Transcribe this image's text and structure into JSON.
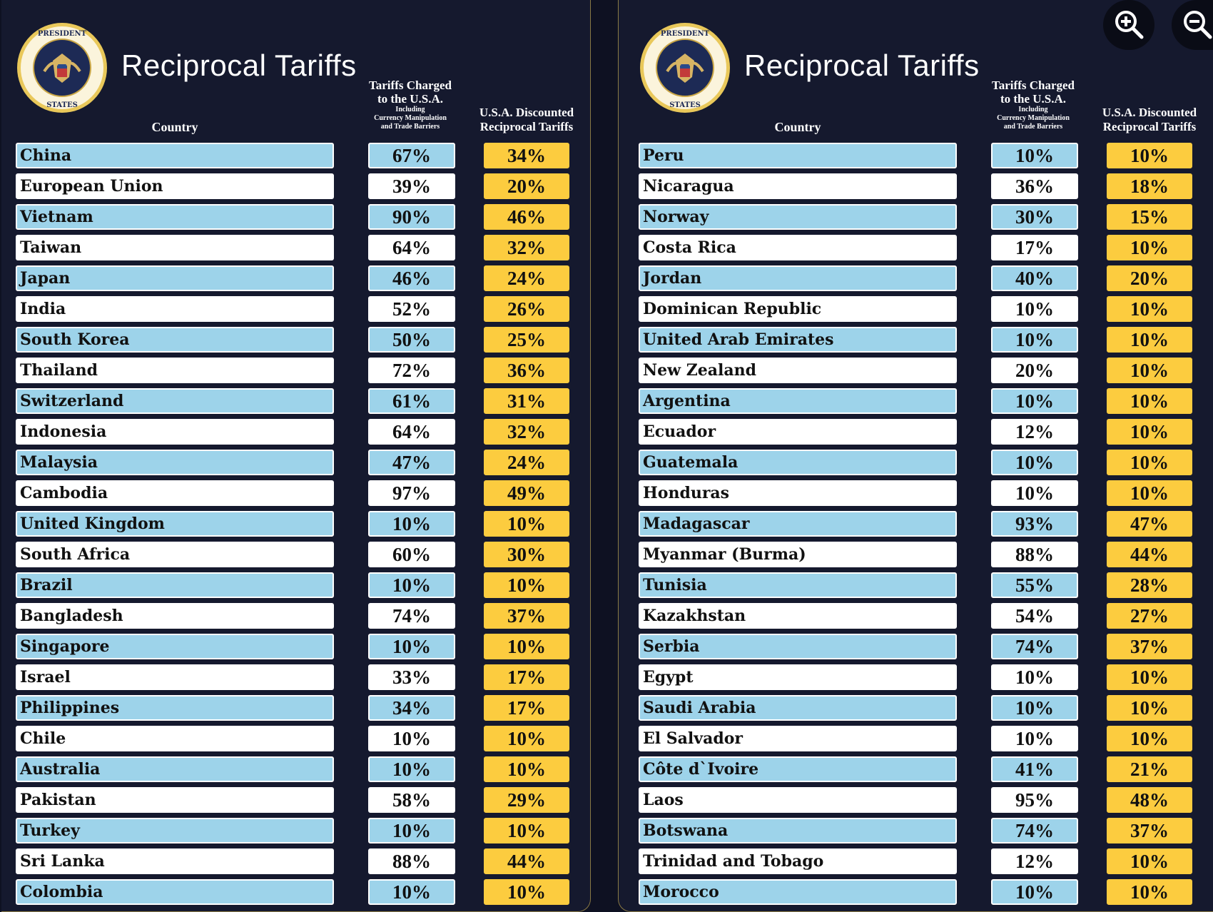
{
  "panels": [
    {
      "title": "Reciprocal Tariffs",
      "header_country": "Country",
      "header_charged_1": "Tariffs Charged",
      "header_charged_2": "to the U.S.A.",
      "header_charged_3": "Including",
      "header_charged_4": "Currency Manipulation",
      "header_charged_5": "and Trade Barriers",
      "header_disc_1": "U.S.A. Discounted",
      "header_disc_2": "Reciprocal Tariffs",
      "rows": [
        {
          "country": "China",
          "charged": "67%",
          "disc": "34%"
        },
        {
          "country": "European Union",
          "charged": "39%",
          "disc": "20%"
        },
        {
          "country": "Vietnam",
          "charged": "90%",
          "disc": "46%"
        },
        {
          "country": "Taiwan",
          "charged": "64%",
          "disc": "32%"
        },
        {
          "country": "Japan",
          "charged": "46%",
          "disc": "24%"
        },
        {
          "country": "India",
          "charged": "52%",
          "disc": "26%"
        },
        {
          "country": "South Korea",
          "charged": "50%",
          "disc": "25%"
        },
        {
          "country": "Thailand",
          "charged": "72%",
          "disc": "36%"
        },
        {
          "country": "Switzerland",
          "charged": "61%",
          "disc": "31%"
        },
        {
          "country": "Indonesia",
          "charged": "64%",
          "disc": "32%"
        },
        {
          "country": "Malaysia",
          "charged": "47%",
          "disc": "24%"
        },
        {
          "country": "Cambodia",
          "charged": "97%",
          "disc": "49%"
        },
        {
          "country": "United Kingdom",
          "charged": "10%",
          "disc": "10%"
        },
        {
          "country": "South Africa",
          "charged": "60%",
          "disc": "30%"
        },
        {
          "country": "Brazil",
          "charged": "10%",
          "disc": "10%"
        },
        {
          "country": "Bangladesh",
          "charged": "74%",
          "disc": "37%"
        },
        {
          "country": "Singapore",
          "charged": "10%",
          "disc": "10%"
        },
        {
          "country": "Israel",
          "charged": "33%",
          "disc": "17%"
        },
        {
          "country": "Philippines",
          "charged": "34%",
          "disc": "17%"
        },
        {
          "country": "Chile",
          "charged": "10%",
          "disc": "10%"
        },
        {
          "country": "Australia",
          "charged": "10%",
          "disc": "10%"
        },
        {
          "country": "Pakistan",
          "charged": "58%",
          "disc": "29%"
        },
        {
          "country": "Turkey",
          "charged": "10%",
          "disc": "10%"
        },
        {
          "country": "Sri Lanka",
          "charged": "88%",
          "disc": "44%"
        },
        {
          "country": "Colombia",
          "charged": "10%",
          "disc": "10%"
        }
      ]
    },
    {
      "title": "Reciprocal Tariffs",
      "header_country": "Country",
      "header_charged_1": "Tariffs Charged",
      "header_charged_2": "to the U.S.A.",
      "header_charged_3": "Including",
      "header_charged_4": "Currency Manipulation",
      "header_charged_5": "and Trade Barriers",
      "header_disc_1": "U.S.A. Discounted",
      "header_disc_2": "Reciprocal Tariffs",
      "rows": [
        {
          "country": "Peru",
          "charged": "10%",
          "disc": "10%"
        },
        {
          "country": "Nicaragua",
          "charged": "36%",
          "disc": "18%"
        },
        {
          "country": "Norway",
          "charged": "30%",
          "disc": "15%"
        },
        {
          "country": "Costa Rica",
          "charged": "17%",
          "disc": "10%"
        },
        {
          "country": "Jordan",
          "charged": "40%",
          "disc": "20%"
        },
        {
          "country": "Dominican Republic",
          "charged": "10%",
          "disc": "10%"
        },
        {
          "country": "United Arab Emirates",
          "charged": "10%",
          "disc": "10%"
        },
        {
          "country": "New Zealand",
          "charged": "20%",
          "disc": "10%"
        },
        {
          "country": "Argentina",
          "charged": "10%",
          "disc": "10%"
        },
        {
          "country": "Ecuador",
          "charged": "12%",
          "disc": "10%"
        },
        {
          "country": "Guatemala",
          "charged": "10%",
          "disc": "10%"
        },
        {
          "country": "Honduras",
          "charged": "10%",
          "disc": "10%"
        },
        {
          "country": "Madagascar",
          "charged": "93%",
          "disc": "47%"
        },
        {
          "country": "Myanmar (Burma)",
          "charged": "88%",
          "disc": "44%"
        },
        {
          "country": "Tunisia",
          "charged": "55%",
          "disc": "28%"
        },
        {
          "country": "Kazakhstan",
          "charged": "54%",
          "disc": "27%"
        },
        {
          "country": "Serbia",
          "charged": "74%",
          "disc": "37%"
        },
        {
          "country": "Egypt",
          "charged": "10%",
          "disc": "10%"
        },
        {
          "country": "Saudi Arabia",
          "charged": "10%",
          "disc": "10%"
        },
        {
          "country": "El Salvador",
          "charged": "10%",
          "disc": "10%"
        },
        {
          "country": "Côte d`Ivoire",
          "charged": "41%",
          "disc": "21%"
        },
        {
          "country": "Laos",
          "charged": "95%",
          "disc": "48%"
        },
        {
          "country": "Botswana",
          "charged": "74%",
          "disc": "37%"
        },
        {
          "country": "Trinidad and Tobago",
          "charged": "12%",
          "disc": "10%"
        },
        {
          "country": "Morocco",
          "charged": "10%",
          "disc": "10%"
        }
      ]
    }
  ],
  "seal_text": "SEAL OF THE PRESIDENT OF THE UNITED STATES",
  "icons": {
    "zoom_in": "zoom-in-icon",
    "zoom_out": "zoom-out-icon"
  },
  "colors": {
    "background": "#15192e",
    "row_blue": "#9dd3ea",
    "row_white": "#ffffff",
    "discount": "#fccc3f"
  }
}
